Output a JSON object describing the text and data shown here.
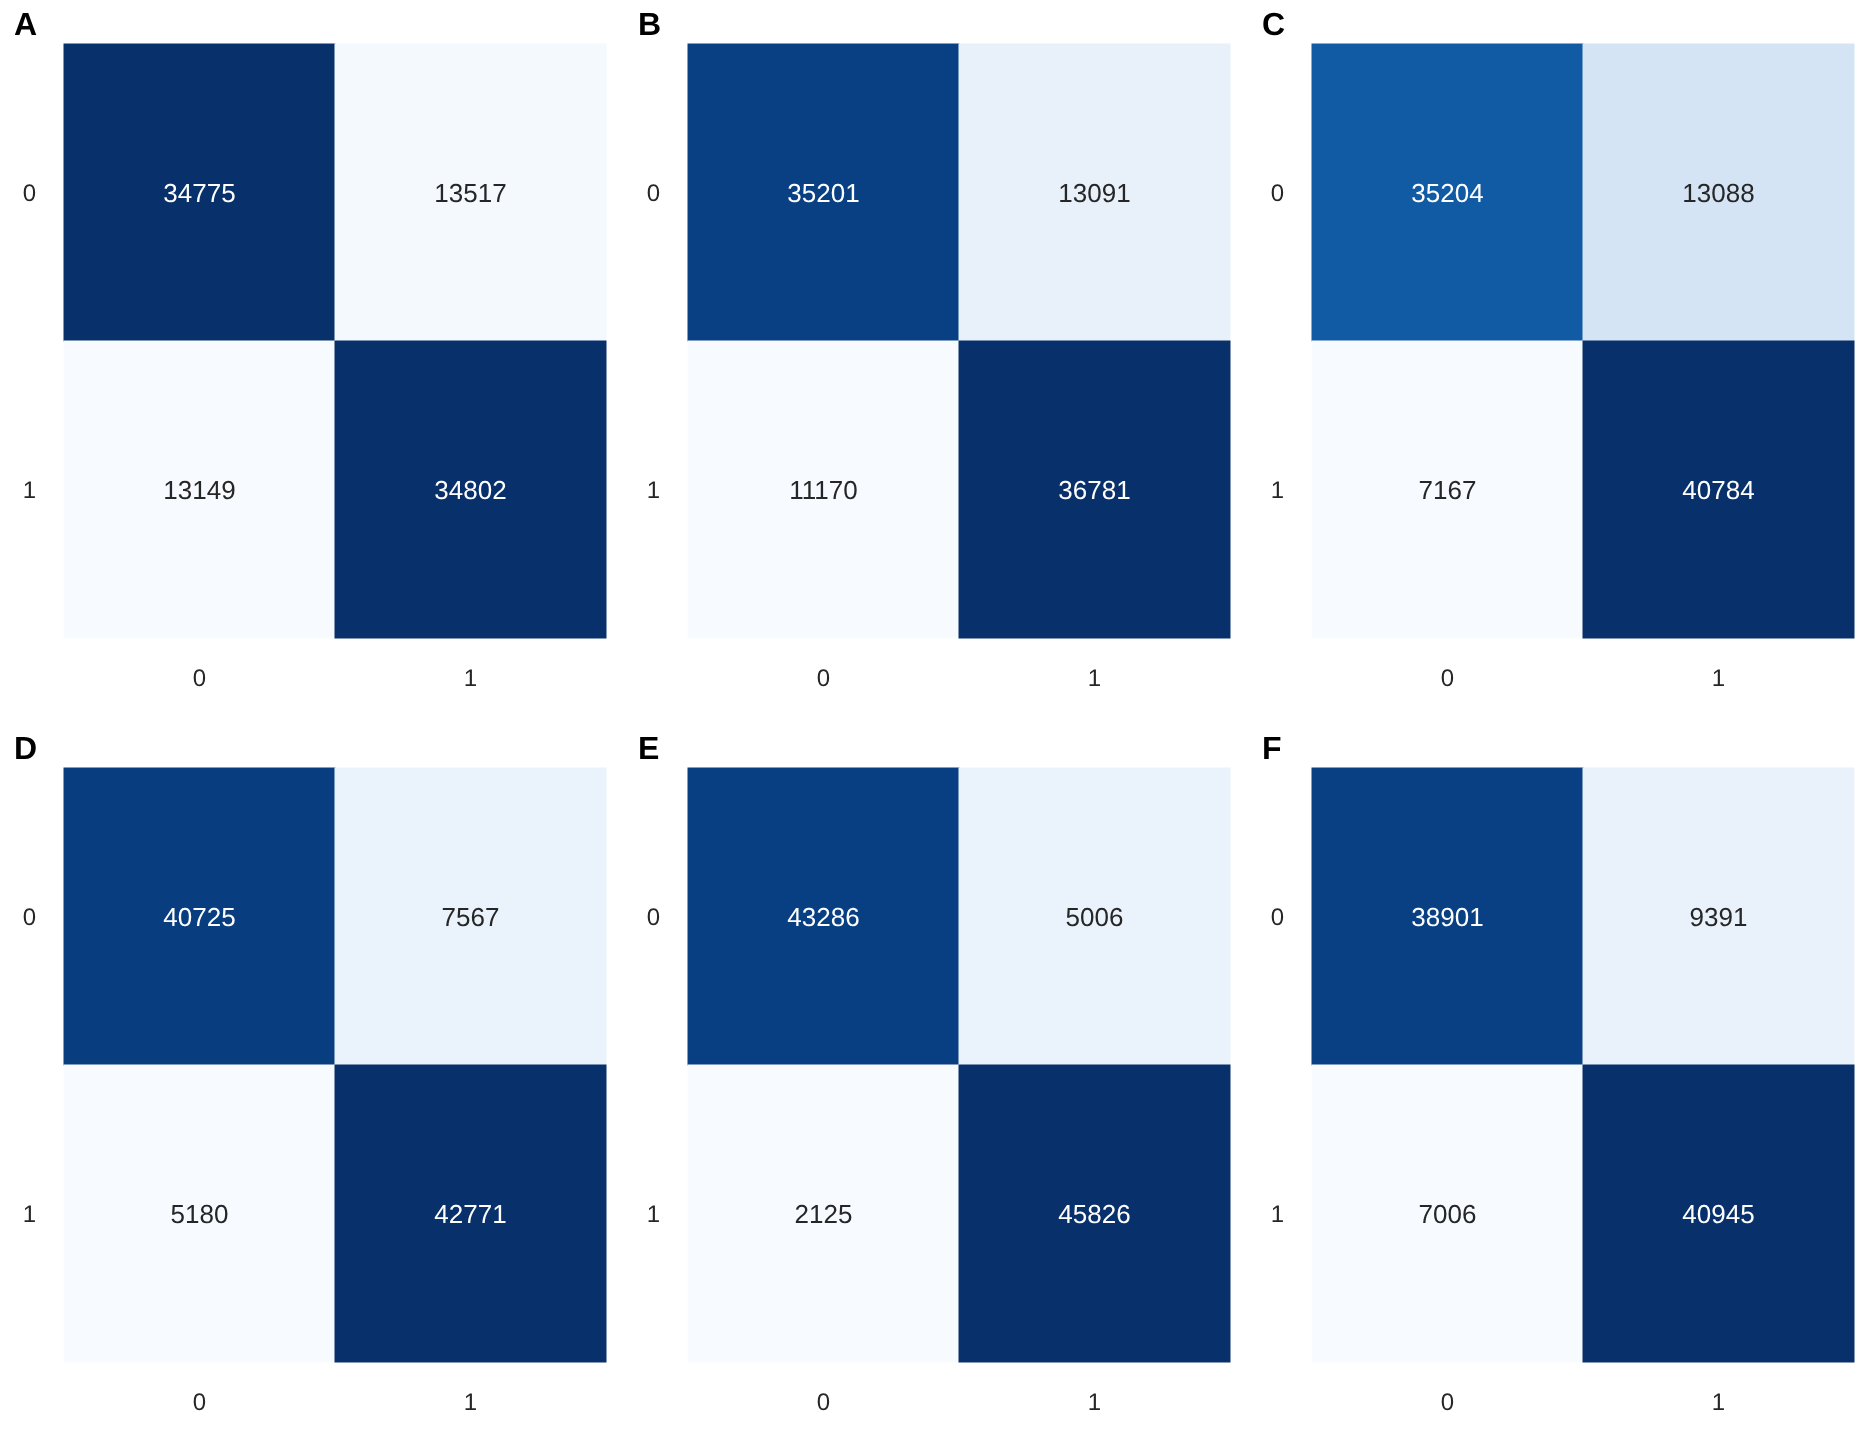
{
  "chart_data": [
    {
      "type": "heatmap",
      "title": "A",
      "categories": [
        "0",
        "1"
      ],
      "y_categories": [
        "0",
        "1"
      ],
      "data_labels": true,
      "cells": [
        [
          34775,
          13517
        ],
        [
          13149,
          34802
        ]
      ]
    },
    {
      "type": "heatmap",
      "title": "B",
      "categories": [
        "0",
        "1"
      ],
      "y_categories": [
        "0",
        "1"
      ],
      "data_labels": true,
      "cells": [
        [
          35201,
          13091
        ],
        [
          11170,
          36781
        ]
      ]
    },
    {
      "type": "heatmap",
      "title": "C",
      "categories": [
        "0",
        "1"
      ],
      "y_categories": [
        "0",
        "1"
      ],
      "data_labels": true,
      "cells": [
        [
          35204,
          13088
        ],
        [
          7167,
          40784
        ]
      ]
    },
    {
      "type": "heatmap",
      "title": "D",
      "categories": [
        "0",
        "1"
      ],
      "y_categories": [
        "0",
        "1"
      ],
      "data_labels": true,
      "cells": [
        [
          40725,
          7567
        ],
        [
          5180,
          42771
        ]
      ]
    },
    {
      "type": "heatmap",
      "title": "E",
      "categories": [
        "0",
        "1"
      ],
      "y_categories": [
        "0",
        "1"
      ],
      "data_labels": true,
      "cells": [
        [
          43286,
          5006
        ],
        [
          2125,
          45826
        ]
      ]
    },
    {
      "type": "heatmap",
      "title": "F",
      "categories": [
        "0",
        "1"
      ],
      "y_categories": [
        "0",
        "1"
      ],
      "data_labels": true,
      "cells": [
        [
          38901,
          9391
        ],
        [
          7006,
          40945
        ]
      ]
    }
  ]
}
